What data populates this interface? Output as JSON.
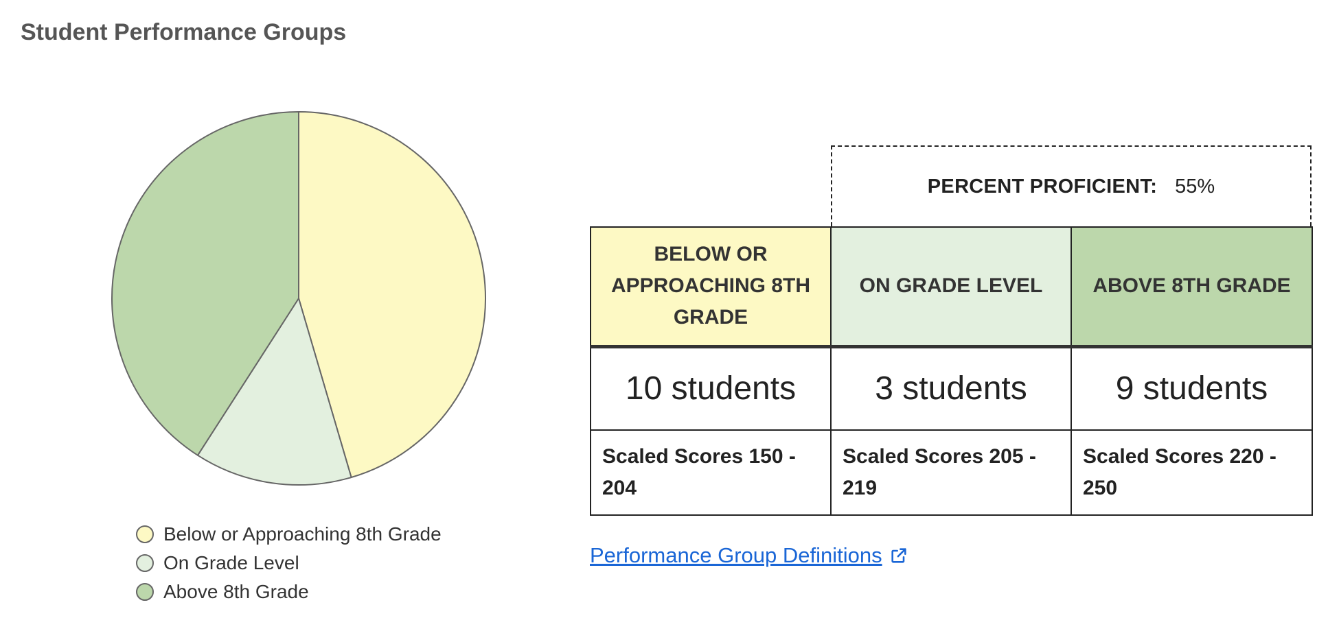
{
  "page_title": "Student Performance Groups",
  "colors": {
    "below": "#fdf9c4",
    "on": "#e3f0df",
    "above": "#bcd7ab",
    "outline": "#666666",
    "link": "#1a66d6"
  },
  "chart_data": {
    "type": "pie",
    "title": "",
    "slices": [
      {
        "label": "Below or Approaching 8th Grade",
        "value": 10,
        "color": "#fdf9c4"
      },
      {
        "label": "On Grade Level",
        "value": 3,
        "color": "#e3f0df"
      },
      {
        "label": "Above 8th Grade",
        "value": 9,
        "color": "#bcd7ab"
      }
    ],
    "start": "top",
    "direction": "clockwise",
    "legend_position": "bottom"
  },
  "legend": [
    {
      "label": "Below or Approaching 8th Grade"
    },
    {
      "label": "On Grade Level"
    },
    {
      "label": "Above 8th Grade"
    }
  ],
  "proficient": {
    "label": "PERCENT PROFICIENT:",
    "value": "55%"
  },
  "table": {
    "headers": [
      "BELOW OR APPROACHING 8TH GRADE",
      "ON GRADE LEVEL",
      "ABOVE 8TH GRADE"
    ],
    "counts": [
      "10 students",
      "3 students",
      "9 students"
    ],
    "scores": [
      "Scaled Scores 150 - 204",
      "Scaled Scores 205 - 219",
      "Scaled Scores 220 - 250"
    ]
  },
  "link": {
    "label": "Performance Group Definitions",
    "icon": "external-link-icon"
  }
}
